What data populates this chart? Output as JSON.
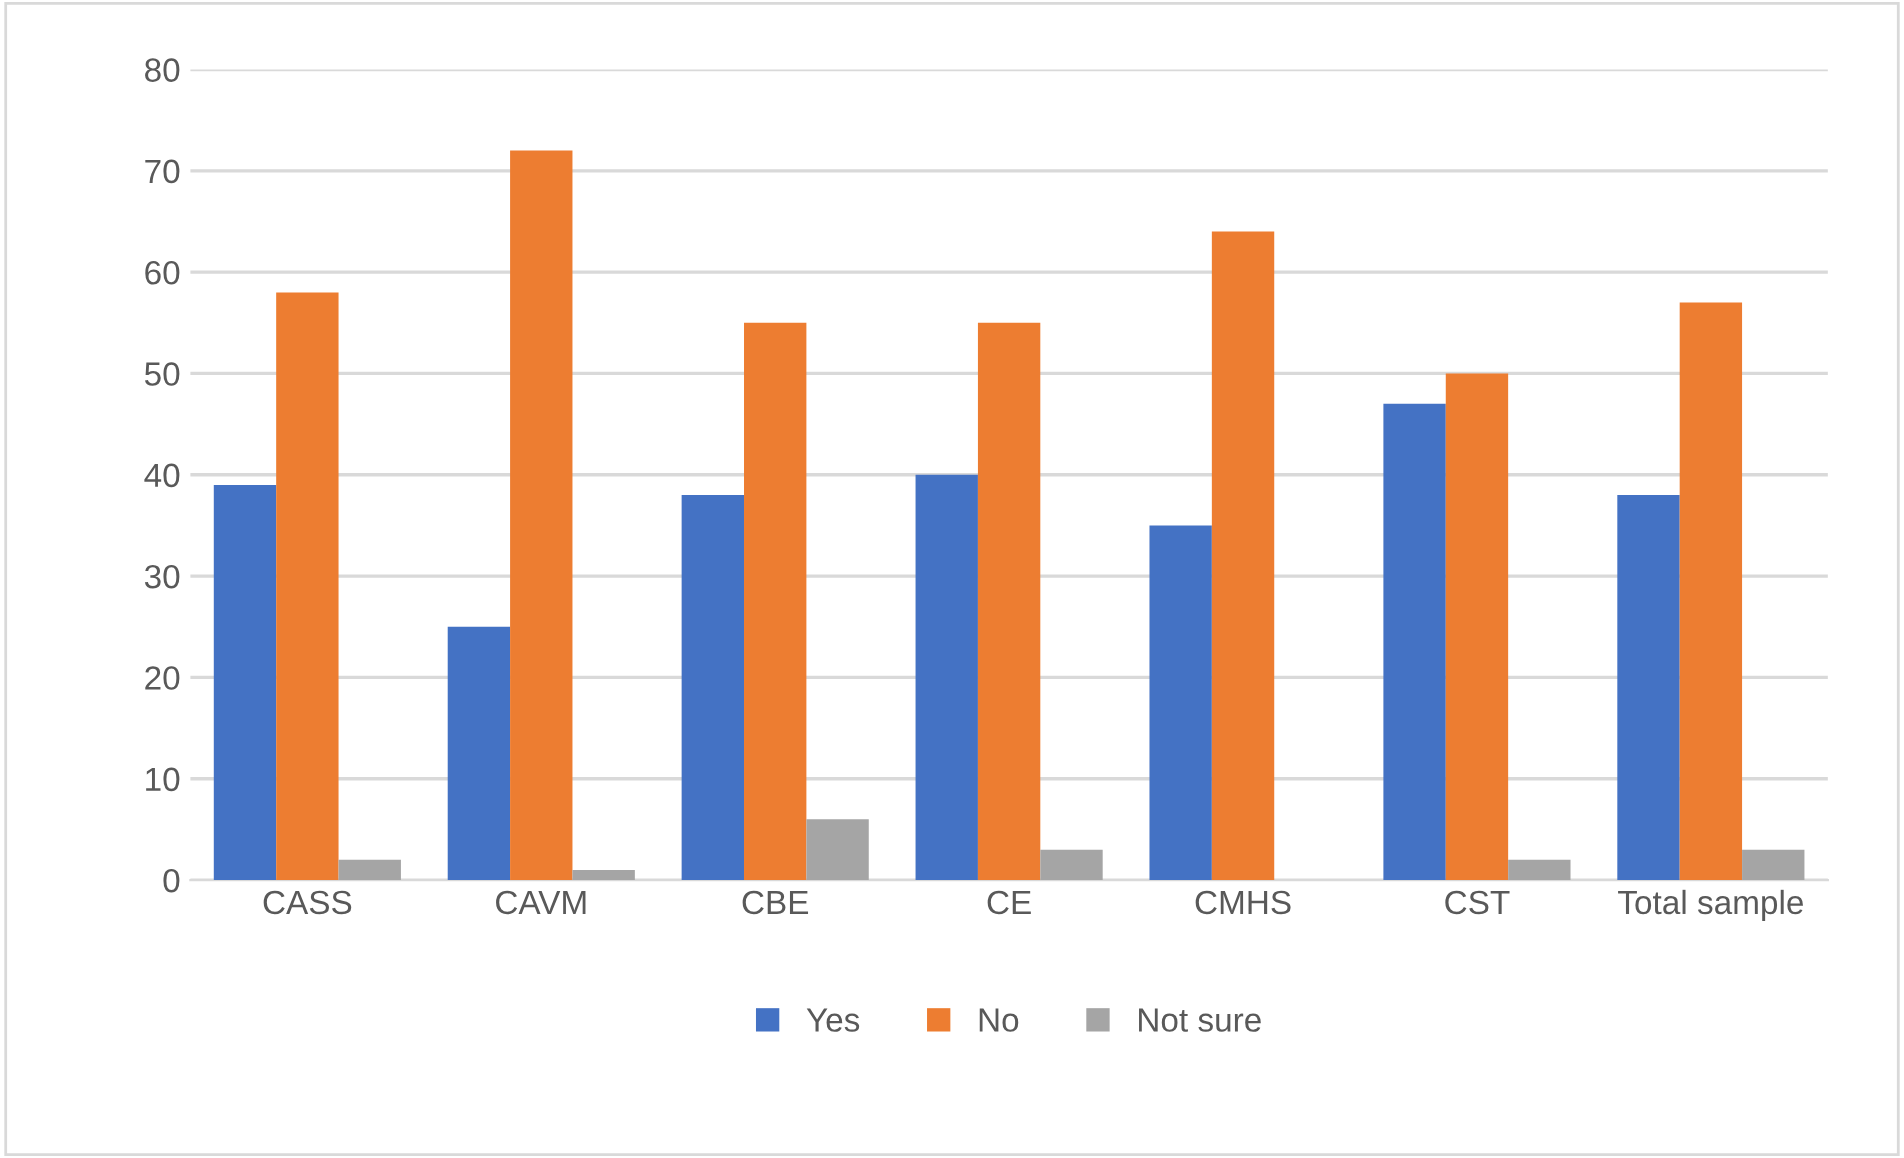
{
  "chart_data": {
    "type": "bar",
    "categories": [
      "CASS",
      "CAVM",
      "CBE",
      "CE",
      "CMHS",
      "CST",
      "Total sample"
    ],
    "series": [
      {
        "name": "Yes",
        "color": "#4472c4",
        "values": [
          39,
          25,
          38,
          40,
          35,
          47,
          38
        ]
      },
      {
        "name": "No",
        "color": "#ed7d31",
        "values": [
          58,
          72,
          55,
          55,
          64,
          50,
          57
        ]
      },
      {
        "name": "Not sure",
        "color": "#a5a5a5",
        "values": [
          2,
          1,
          6,
          3,
          0,
          2,
          3
        ]
      }
    ],
    "ylim": [
      0,
      80
    ],
    "yticks": [
      0,
      10,
      20,
      30,
      40,
      50,
      60,
      70,
      80
    ],
    "grid": "y",
    "legend": "bottom"
  }
}
